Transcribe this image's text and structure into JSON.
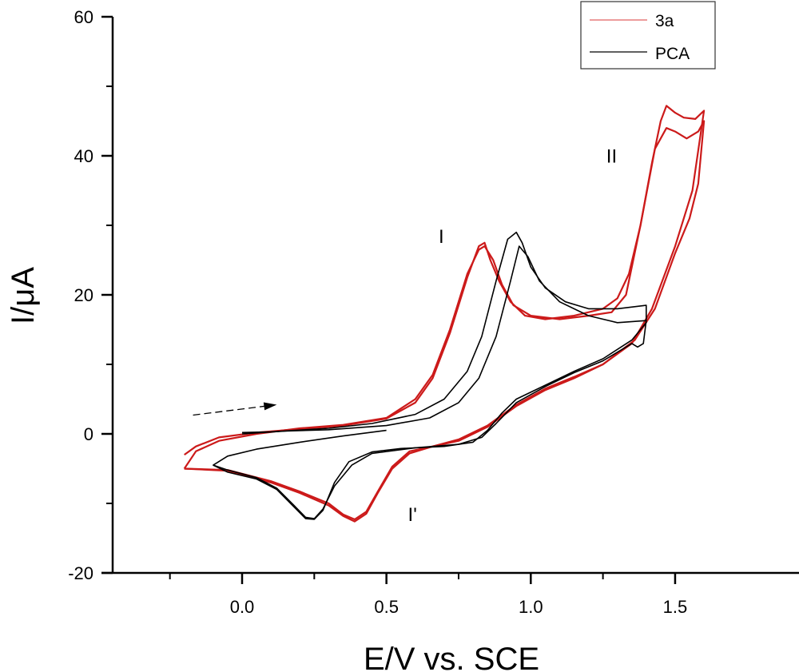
{
  "chart_data": {
    "type": "line",
    "title": "",
    "xlabel": "E/V vs. SCE",
    "ylabel": "I/μA",
    "xlim": [
      -0.43,
      1.65
    ],
    "ylim": [
      -20,
      60
    ],
    "grid": false,
    "x_ticks": [
      {
        "value": 0.0,
        "label": "0.0"
      },
      {
        "value": 0.5,
        "label": "0.5"
      },
      {
        "value": 1.0,
        "label": "1.0"
      },
      {
        "value": 1.5,
        "label": "1.5"
      }
    ],
    "x_minor_ticks": [
      -0.25,
      0.25,
      0.75,
      1.25
    ],
    "y_ticks": [
      {
        "value": -20,
        "label": "-20"
      },
      {
        "value": 0,
        "label": "0"
      },
      {
        "value": 20,
        "label": "20"
      },
      {
        "value": 40,
        "label": "40"
      },
      {
        "value": 60,
        "label": "60"
      }
    ],
    "y_minor_ticks": [
      -10,
      10,
      30,
      50
    ],
    "legend": {
      "placement": "top-right",
      "entries": [
        {
          "name": "3a",
          "color": "#e06060"
        },
        {
          "name": "PCA",
          "color": "#000000"
        }
      ]
    },
    "annotations": [
      {
        "text": "I",
        "x": 0.69,
        "y": 27.5
      },
      {
        "text": "II",
        "x": 1.28,
        "y": 39.0
      },
      {
        "text": "I'",
        "x": 0.59,
        "y": -12.5
      }
    ],
    "scan_arrow": {
      "from": [
        -0.17,
        2.7
      ],
      "to": [
        0.12,
        4.2
      ],
      "style": "dashed"
    },
    "series": [
      {
        "name": "3a",
        "color": "#cc1a1a",
        "cycles": [
          {
            "points": [
              [
                -0.2,
                -5.0
              ],
              [
                -0.05,
                -5.3
              ],
              [
                0.1,
                -7.0
              ],
              [
                0.2,
                -8.5
              ],
              [
                0.3,
                -10.3
              ],
              [
                0.35,
                -11.8
              ],
              [
                0.39,
                -12.6
              ],
              [
                0.43,
                -11.5
              ],
              [
                0.47,
                -8.5
              ],
              [
                0.52,
                -5.0
              ],
              [
                0.58,
                -2.8
              ],
              [
                0.66,
                -1.8
              ],
              [
                0.75,
                -1.0
              ],
              [
                0.85,
                1.0
              ],
              [
                0.95,
                4.0
              ],
              [
                1.05,
                6.3
              ],
              [
                1.15,
                8.0
              ],
              [
                1.25,
                10.0
              ],
              [
                1.35,
                13.0
              ],
              [
                1.42,
                18.0
              ],
              [
                1.5,
                27.0
              ],
              [
                1.56,
                35.0
              ],
              [
                1.6,
                46.5
              ],
              [
                1.57,
                45.3
              ],
              [
                1.53,
                45.5
              ],
              [
                1.5,
                46.2
              ],
              [
                1.47,
                47.2
              ],
              [
                1.45,
                45.0
              ],
              [
                1.42,
                39.0
              ],
              [
                1.38,
                30.0
              ],
              [
                1.34,
                23.0
              ],
              [
                1.3,
                19.5
              ],
              [
                1.25,
                18.0
              ],
              [
                1.15,
                17.0
              ],
              [
                1.05,
                16.5
              ],
              [
                0.98,
                17.0
              ],
              [
                0.93,
                19.0
              ],
              [
                0.89,
                22.0
              ],
              [
                0.86,
                25.0
              ],
              [
                0.84,
                27.5
              ],
              [
                0.82,
                27.0
              ],
              [
                0.78,
                22.5
              ],
              [
                0.72,
                14.5
              ],
              [
                0.66,
                8.0
              ],
              [
                0.6,
                4.5
              ],
              [
                0.5,
                2.2
              ],
              [
                0.35,
                1.2
              ],
              [
                0.2,
                0.7
              ],
              [
                0.05,
                0.2
              ],
              [
                -0.08,
                -0.5
              ],
              [
                -0.16,
                -1.8
              ],
              [
                -0.2,
                -3.0
              ]
            ]
          },
          {
            "points": [
              [
                -0.2,
                -5.0
              ],
              [
                -0.16,
                -2.5
              ],
              [
                -0.08,
                -1.0
              ],
              [
                0.05,
                0.0
              ],
              [
                0.2,
                0.8
              ],
              [
                0.35,
                1.3
              ],
              [
                0.5,
                2.3
              ],
              [
                0.6,
                5.0
              ],
              [
                0.66,
                8.5
              ],
              [
                0.72,
                15.0
              ],
              [
                0.78,
                23.0
              ],
              [
                0.82,
                26.5
              ],
              [
                0.84,
                27.0
              ],
              [
                0.87,
                25.0
              ],
              [
                0.9,
                21.5
              ],
              [
                0.94,
                18.5
              ],
              [
                1.0,
                17.0
              ],
              [
                1.1,
                16.5
              ],
              [
                1.2,
                17.0
              ],
              [
                1.28,
                17.5
              ],
              [
                1.33,
                20.0
              ],
              [
                1.38,
                30.0
              ],
              [
                1.43,
                41.0
              ],
              [
                1.47,
                44.0
              ],
              [
                1.5,
                43.5
              ],
              [
                1.54,
                42.5
              ],
              [
                1.58,
                43.5
              ],
              [
                1.6,
                45.0
              ],
              [
                1.58,
                36.0
              ],
              [
                1.55,
                31.0
              ],
              [
                1.5,
                26.0
              ],
              [
                1.43,
                18.0
              ],
              [
                1.36,
                13.5
              ],
              [
                1.25,
                10.0
              ],
              [
                1.15,
                8.2
              ],
              [
                1.05,
                6.5
              ],
              [
                0.95,
                4.2
              ],
              [
                0.85,
                1.2
              ],
              [
                0.75,
                -0.8
              ],
              [
                0.66,
                -1.8
              ],
              [
                0.58,
                -2.5
              ],
              [
                0.52,
                -4.7
              ],
              [
                0.47,
                -8.3
              ],
              [
                0.43,
                -11.2
              ],
              [
                0.39,
                -12.3
              ],
              [
                0.35,
                -11.6
              ],
              [
                0.3,
                -10.0
              ],
              [
                0.2,
                -8.3
              ],
              [
                0.1,
                -6.8
              ],
              [
                -0.05,
                -5.2
              ],
              [
                -0.2,
                -5.0
              ]
            ]
          }
        ]
      },
      {
        "name": "PCA",
        "color": "#000000",
        "cycles": [
          {
            "points": [
              [
                -0.1,
                -4.5
              ],
              [
                -0.05,
                -5.5
              ],
              [
                0.05,
                -6.5
              ],
              [
                0.12,
                -8.0
              ],
              [
                0.18,
                -10.5
              ],
              [
                0.22,
                -12.2
              ],
              [
                0.25,
                -12.3
              ],
              [
                0.28,
                -11.0
              ],
              [
                0.32,
                -7.0
              ],
              [
                0.37,
                -4.0
              ],
              [
                0.45,
                -2.6
              ],
              [
                0.55,
                -2.1
              ],
              [
                0.7,
                -1.8
              ],
              [
                0.8,
                -1.2
              ],
              [
                0.85,
                0.5
              ],
              [
                0.9,
                3.0
              ],
              [
                0.95,
                5.0
              ],
              [
                1.05,
                7.0
              ],
              [
                1.15,
                9.0
              ],
              [
                1.25,
                10.8
              ],
              [
                1.35,
                13.5
              ],
              [
                1.38,
                15.0
              ],
              [
                1.4,
                16.0
              ],
              [
                1.4,
                18.5
              ],
              [
                1.3,
                18.0
              ],
              [
                1.2,
                18.0
              ],
              [
                1.12,
                19.0
              ],
              [
                1.05,
                21.0
              ],
              [
                1.0,
                24.0
              ],
              [
                0.97,
                27.5
              ],
              [
                0.95,
                29.0
              ],
              [
                0.92,
                28.0
              ],
              [
                0.88,
                22.0
              ],
              [
                0.83,
                14.0
              ],
              [
                0.78,
                9.0
              ],
              [
                0.7,
                5.0
              ],
              [
                0.6,
                2.8
              ],
              [
                0.45,
                1.5
              ],
              [
                0.3,
                0.8
              ],
              [
                0.1,
                0.3
              ],
              [
                0.0,
                0.2
              ]
            ]
          },
          {
            "points": [
              [
                0.0,
                0.0
              ],
              [
                0.15,
                0.4
              ],
              [
                0.3,
                0.6
              ],
              [
                0.5,
                1.2
              ],
              [
                0.65,
                2.3
              ],
              [
                0.75,
                4.5
              ],
              [
                0.82,
                8.0
              ],
              [
                0.88,
                14.0
              ],
              [
                0.93,
                22.0
              ],
              [
                0.96,
                27.0
              ],
              [
                0.99,
                25.5
              ],
              [
                1.03,
                22.0
              ],
              [
                1.1,
                19.0
              ],
              [
                1.2,
                17.0
              ],
              [
                1.3,
                16.0
              ],
              [
                1.4,
                16.3
              ],
              [
                1.39,
                13.0
              ],
              [
                1.37,
                12.5
              ],
              [
                1.35,
                13.0
              ],
              [
                1.25,
                10.5
              ],
              [
                1.15,
                8.8
              ],
              [
                1.05,
                6.8
              ],
              [
                0.95,
                4.5
              ],
              [
                0.88,
                1.5
              ],
              [
                0.83,
                -0.5
              ],
              [
                0.75,
                -1.5
              ],
              [
                0.6,
                -2.0
              ],
              [
                0.45,
                -2.8
              ],
              [
                0.38,
                -4.5
              ],
              [
                0.32,
                -7.5
              ],
              [
                0.28,
                -10.8
              ],
              [
                0.25,
                -12.2
              ],
              [
                0.22,
                -12.0
              ],
              [
                0.18,
                -10.3
              ],
              [
                0.12,
                -7.8
              ],
              [
                0.05,
                -6.3
              ],
              [
                -0.05,
                -5.2
              ],
              [
                -0.1,
                -4.5
              ],
              [
                -0.05,
                -3.2
              ],
              [
                0.05,
                -2.2
              ],
              [
                0.2,
                -1.2
              ],
              [
                0.35,
                -0.3
              ],
              [
                0.5,
                0.5
              ]
            ]
          }
        ]
      }
    ]
  }
}
